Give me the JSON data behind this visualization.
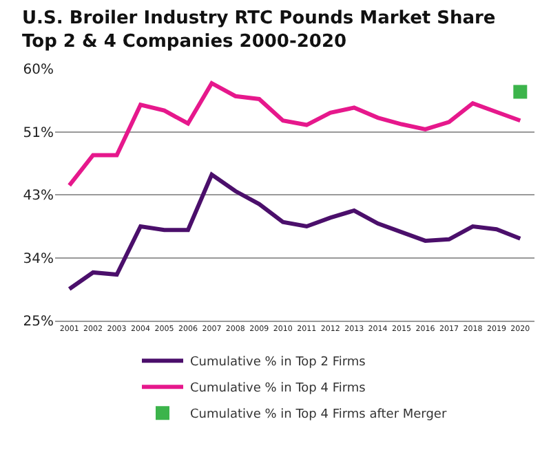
{
  "chart_data": {
    "type": "line",
    "title": "U.S. Broiler Industry RTC Pounds Market Share\nTop 2 & 4 Companies 2000-2020",
    "categories": [
      "2001",
      "2002",
      "2003",
      "2004",
      "2005",
      "2006",
      "2007",
      "2008",
      "2009",
      "2010",
      "2011",
      "2012",
      "2013",
      "2014",
      "2015",
      "2016",
      "2017",
      "2018",
      "2019",
      "2020"
    ],
    "series": [
      {
        "name": "Cumulative % in Top 2 Firms",
        "color": "#4b0f6b",
        "values": [
          29.4,
          31.7,
          31.4,
          38.1,
          37.6,
          37.6,
          45.3,
          43.0,
          41.2,
          38.7,
          38.1,
          39.3,
          40.3,
          38.5,
          37.3,
          36.1,
          36.3,
          38.1,
          37.7,
          36.4
        ]
      },
      {
        "name": "Cumulative % in Top 4 Firms",
        "color": "#e6188c",
        "values": [
          43.8,
          48.0,
          48.0,
          55.0,
          54.2,
          52.4,
          58.0,
          56.2,
          55.8,
          52.8,
          52.2,
          53.9,
          54.6,
          53.2,
          52.3,
          51.6,
          52.6,
          55.2,
          54.0,
          52.8
        ]
      },
      {
        "name": "Cumulative % in Top 4 Firms after Merger",
        "color": "#3cb44b",
        "type": "scatter",
        "marker": "square",
        "values": [
          null,
          null,
          null,
          null,
          null,
          null,
          null,
          null,
          null,
          null,
          null,
          null,
          null,
          null,
          null,
          null,
          null,
          null,
          null,
          56.8
        ]
      }
    ],
    "ylim": [
      25,
      60
    ],
    "yticks": [
      {
        "value": 25,
        "label": "25%"
      },
      {
        "value": 33.75,
        "label": "34%"
      },
      {
        "value": 42.5,
        "label": "43%"
      },
      {
        "value": 51.25,
        "label": "51%"
      },
      {
        "value": 60,
        "label": "60%"
      }
    ],
    "grid": "y",
    "legend": "bottom",
    "marker": "none",
    "line_style": "solid"
  }
}
